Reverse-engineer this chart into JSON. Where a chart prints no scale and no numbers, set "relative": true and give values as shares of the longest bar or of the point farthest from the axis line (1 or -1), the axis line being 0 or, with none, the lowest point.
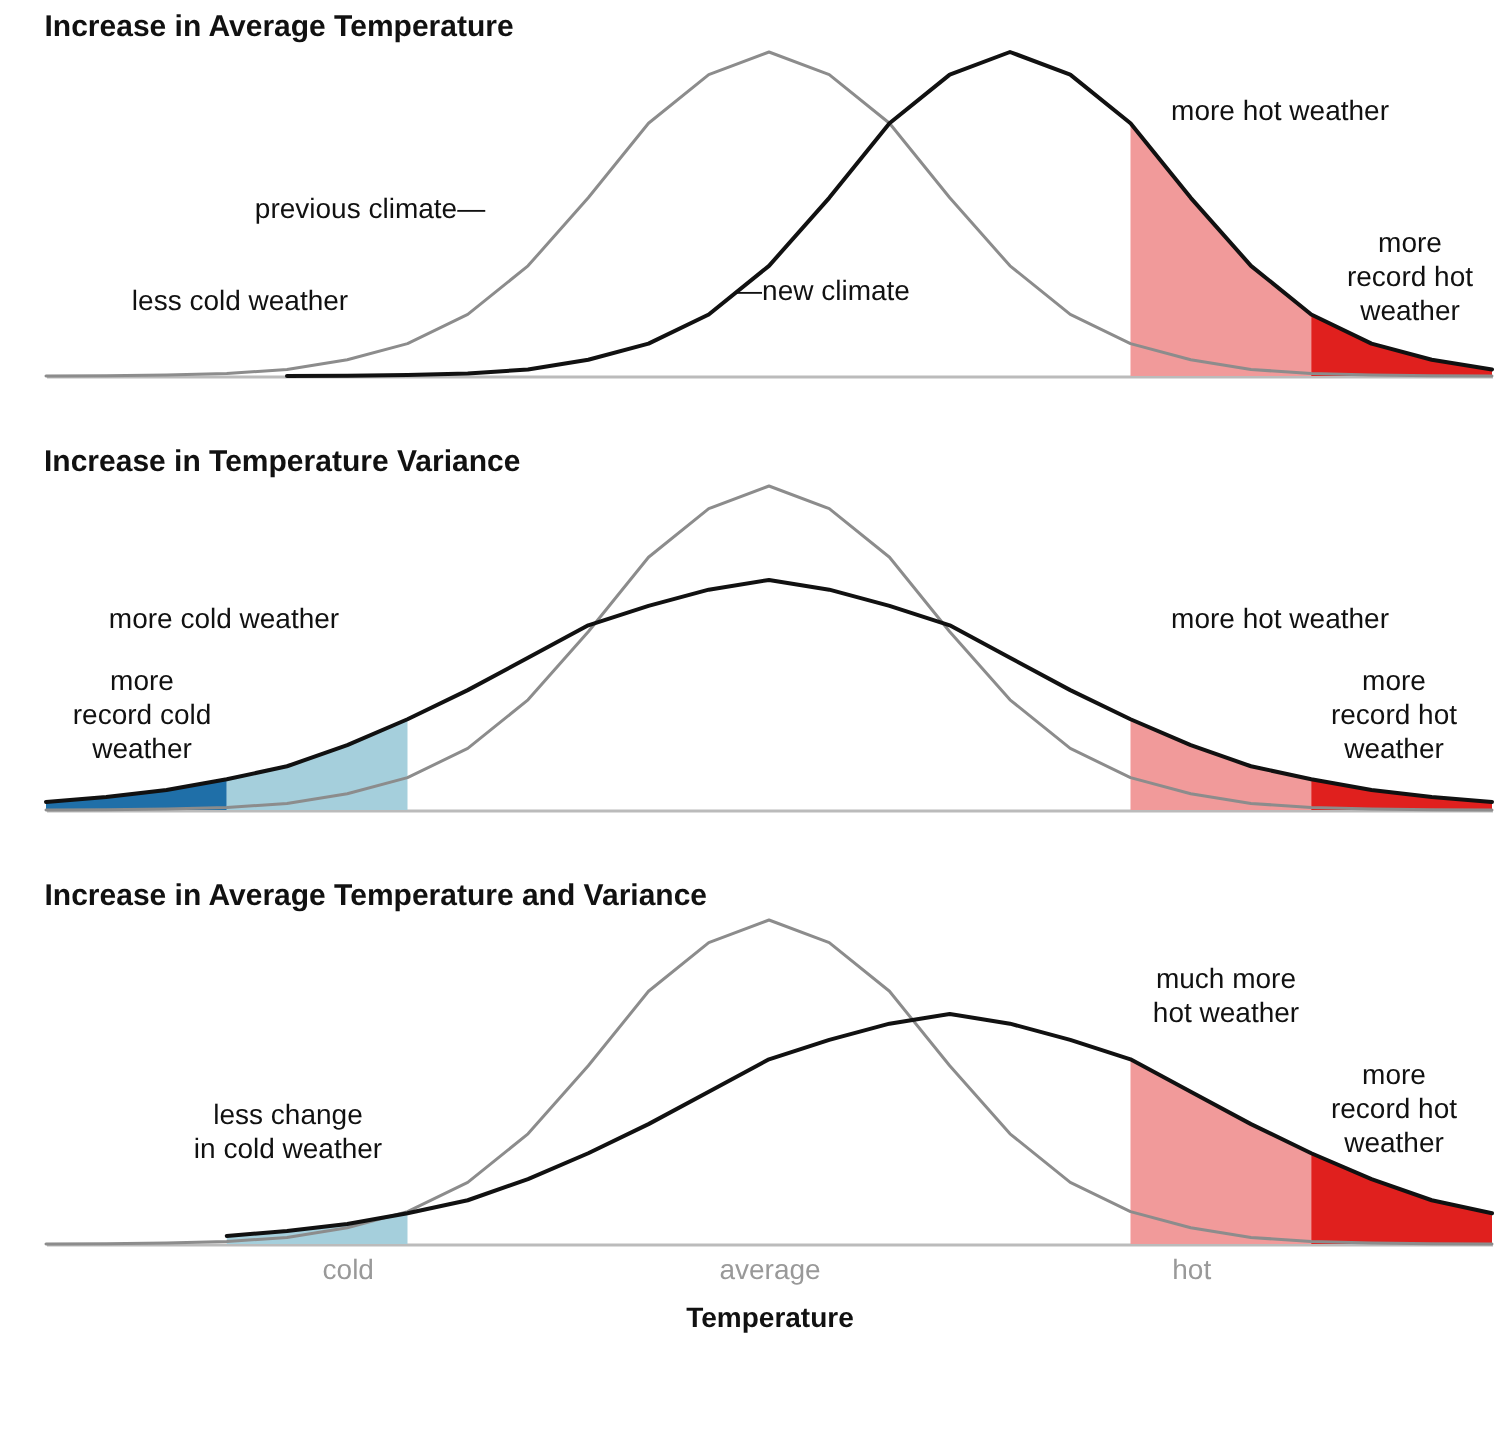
{
  "chart_data": [
    {
      "type": "line",
      "title": "Increase in Average Temperature",
      "relative": true,
      "tick_labels": false,
      "categories": [
        null,
        null,
        null,
        null,
        null,
        null,
        null,
        null,
        null,
        null,
        null,
        null,
        null,
        null,
        null,
        null,
        null,
        null,
        null,
        null,
        null,
        null,
        null,
        null,
        null
      ],
      "series": [
        {
          "type": "area",
          "color": "#f19a9a",
          "values": [
            null,
            null,
            null,
            null,
            null,
            null,
            null,
            null,
            null,
            null,
            null,
            null,
            null,
            null,
            null,
            null,
            null,
            null,
            0.78,
            0.55,
            0.34,
            0.19,
            null,
            null,
            null
          ]
        },
        {
          "type": "area",
          "color": "#e0201e",
          "values": [
            null,
            null,
            null,
            null,
            null,
            null,
            null,
            null,
            null,
            null,
            null,
            null,
            null,
            null,
            null,
            null,
            null,
            null,
            null,
            null,
            null,
            0.19,
            0.1,
            0.05,
            0.02
          ]
        },
        {
          "color": "#8c8c8c",
          "values": [
            0,
            0.001,
            0.003,
            0.008,
            0.02,
            0.05,
            0.1,
            0.19,
            0.34,
            0.55,
            0.78,
            0.93,
            1,
            0.93,
            0.78,
            0.55,
            0.34,
            0.19,
            0.1,
            0.05,
            0.02,
            0.008,
            0.003,
            0.001,
            0
          ]
        },
        {
          "color": "#111111",
          "values": [
            null,
            null,
            null,
            null,
            0,
            0.001,
            0.003,
            0.008,
            0.02,
            0.05,
            0.1,
            0.19,
            0.34,
            0.55,
            0.78,
            0.93,
            1,
            0.93,
            0.78,
            0.55,
            0.34,
            0.19,
            0.1,
            0.05,
            0.02
          ]
        }
      ],
      "annotations": [
        "less cold weather",
        "previous climate—",
        "—new climate",
        "more hot weather",
        "more\nrecord hot\nweather"
      ]
    },
    {
      "type": "line",
      "title": "Increase in Temperature Variance",
      "relative": true,
      "tick_labels": false,
      "categories": [
        null,
        null,
        null,
        null,
        null,
        null,
        null,
        null,
        null,
        null,
        null,
        null,
        null,
        null,
        null,
        null,
        null,
        null,
        null,
        null,
        null,
        null,
        null,
        null,
        null
      ],
      "series": [
        {
          "type": "area",
          "color": "#1f6fa8",
          "values": [
            0.025,
            0.04,
            0.062,
            0.095,
            null,
            null,
            null,
            null,
            null,
            null,
            null,
            null,
            null,
            null,
            null,
            null,
            null,
            null,
            null,
            null,
            null,
            null,
            null,
            null,
            null
          ]
        },
        {
          "type": "area",
          "color": "#a5cfdc",
          "values": [
            null,
            null,
            null,
            0.095,
            0.135,
            0.2,
            0.28,
            null,
            null,
            null,
            null,
            null,
            null,
            null,
            null,
            null,
            null,
            null,
            null,
            null,
            null,
            null,
            null,
            null,
            null
          ]
        },
        {
          "type": "area",
          "color": "#f19a9a",
          "values": [
            null,
            null,
            null,
            null,
            null,
            null,
            null,
            null,
            null,
            null,
            null,
            null,
            null,
            null,
            null,
            null,
            null,
            null,
            0.28,
            0.2,
            0.135,
            0.095,
            null,
            null,
            null
          ]
        },
        {
          "type": "area",
          "color": "#e0201e",
          "values": [
            null,
            null,
            null,
            null,
            null,
            null,
            null,
            null,
            null,
            null,
            null,
            null,
            null,
            null,
            null,
            null,
            null,
            null,
            null,
            null,
            null,
            0.095,
            0.062,
            0.04,
            0.025
          ]
        },
        {
          "color": "#8c8c8c",
          "values": [
            0,
            0.001,
            0.003,
            0.008,
            0.02,
            0.05,
            0.1,
            0.19,
            0.34,
            0.55,
            0.78,
            0.93,
            1,
            0.93,
            0.78,
            0.55,
            0.34,
            0.19,
            0.1,
            0.05,
            0.02,
            0.008,
            0.003,
            0.001,
            0
          ]
        },
        {
          "color": "#111111",
          "values": [
            0.025,
            0.04,
            0.062,
            0.095,
            0.135,
            0.2,
            0.28,
            0.37,
            0.47,
            0.57,
            0.63,
            0.68,
            0.71,
            0.68,
            0.63,
            0.57,
            0.47,
            0.37,
            0.28,
            0.2,
            0.135,
            0.095,
            0.062,
            0.04,
            0.025
          ]
        }
      ],
      "annotations": [
        "more cold weather",
        "more\nrecord cold\nweather",
        "more hot weather",
        "more\nrecord hot\nweather"
      ]
    },
    {
      "type": "line",
      "title": "Increase in Average Temperature and Variance",
      "xlabel": "Temperature",
      "relative": true,
      "tick_labels": "x",
      "categories": [
        null,
        null,
        null,
        null,
        null,
        "cold",
        null,
        null,
        null,
        null,
        null,
        null,
        "average",
        null,
        null,
        null,
        null,
        null,
        null,
        "hot",
        null,
        null,
        null,
        null,
        null
      ],
      "series": [
        {
          "type": "area",
          "color": "#a5cfdc",
          "values": [
            null,
            null,
            null,
            0.025,
            0.04,
            0.062,
            0.095,
            null,
            null,
            null,
            null,
            null,
            null,
            null,
            null,
            null,
            null,
            null,
            null,
            null,
            null,
            null,
            null,
            null,
            null
          ]
        },
        {
          "type": "area",
          "color": "#f19a9a",
          "values": [
            null,
            null,
            null,
            null,
            null,
            null,
            null,
            null,
            null,
            null,
            null,
            null,
            null,
            null,
            null,
            null,
            null,
            null,
            0.57,
            0.47,
            0.37,
            0.28,
            null,
            null,
            null
          ]
        },
        {
          "type": "area",
          "color": "#e0201e",
          "values": [
            null,
            null,
            null,
            null,
            null,
            null,
            null,
            null,
            null,
            null,
            null,
            null,
            null,
            null,
            null,
            null,
            null,
            null,
            null,
            null,
            null,
            0.28,
            0.2,
            0.135,
            0.095
          ]
        },
        {
          "color": "#8c8c8c",
          "values": [
            0,
            0.001,
            0.003,
            0.008,
            0.02,
            0.05,
            0.1,
            0.19,
            0.34,
            0.55,
            0.78,
            0.93,
            1,
            0.93,
            0.78,
            0.55,
            0.34,
            0.19,
            0.1,
            0.05,
            0.02,
            0.008,
            0.003,
            0.001,
            0
          ]
        },
        {
          "color": "#111111",
          "values": [
            null,
            null,
            null,
            0.025,
            0.04,
            0.062,
            0.095,
            0.135,
            0.2,
            0.28,
            0.37,
            0.47,
            0.57,
            0.63,
            0.68,
            0.71,
            0.68,
            0.63,
            0.57,
            0.47,
            0.37,
            0.28,
            0.2,
            0.135,
            0.095
          ]
        }
      ],
      "annotations": [
        "less change\nin cold weather",
        "much more\nhot weather",
        "more\nrecord hot\nweather"
      ]
    }
  ]
}
